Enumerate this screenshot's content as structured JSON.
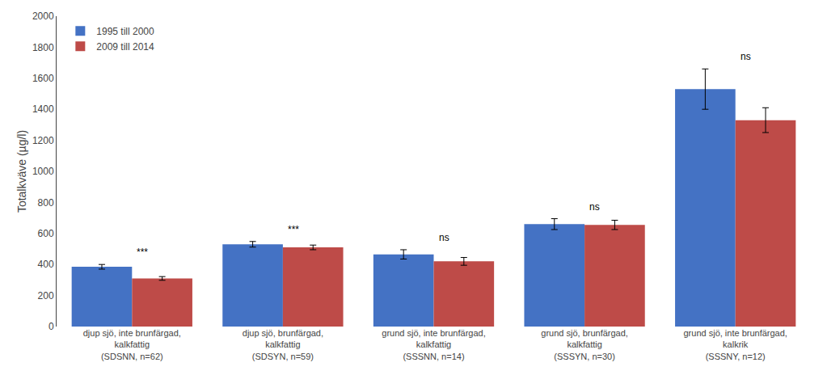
{
  "chart_data": {
    "type": "bar",
    "categories": [
      "djup sjö, inte brunfärgad,\nkalkfattig\n(SDSNN, n=62)",
      "djup sjö, brunfärgad,\nkalkfattig\n(SDSYN, n=59)",
      "grund sjö, inte brunfärgad,\nkalkfattig\n(SSSNN, n=14)",
      "grund sjö, brunfärgad,\nkalkfattig\n(SSSYN, n=30)",
      "grund sjö, inte brunfärgad,\nkalkrik\n(SSSNY, n=12)"
    ],
    "series": [
      {
        "name": "1995 till 2000",
        "color": "#4472C4",
        "values": [
          385,
          530,
          465,
          660,
          1530
        ],
        "errors": [
          15,
          18,
          30,
          35,
          130
        ]
      },
      {
        "name": "2009 till 2014",
        "color": "#BE4B48",
        "values": [
          310,
          510,
          420,
          655,
          1330
        ],
        "errors": [
          12,
          15,
          25,
          30,
          80
        ]
      }
    ],
    "annotations": [
      "***",
      "***",
      "ns",
      "ns",
      "ns"
    ],
    "y_label": "Totalkväve (µg/l)",
    "ylim": [
      0,
      2000
    ],
    "yticks": [
      0,
      200,
      400,
      600,
      800,
      1000,
      1200,
      1400,
      1600,
      1800,
      2000
    ],
    "grid": false,
    "legend": "upper left"
  }
}
